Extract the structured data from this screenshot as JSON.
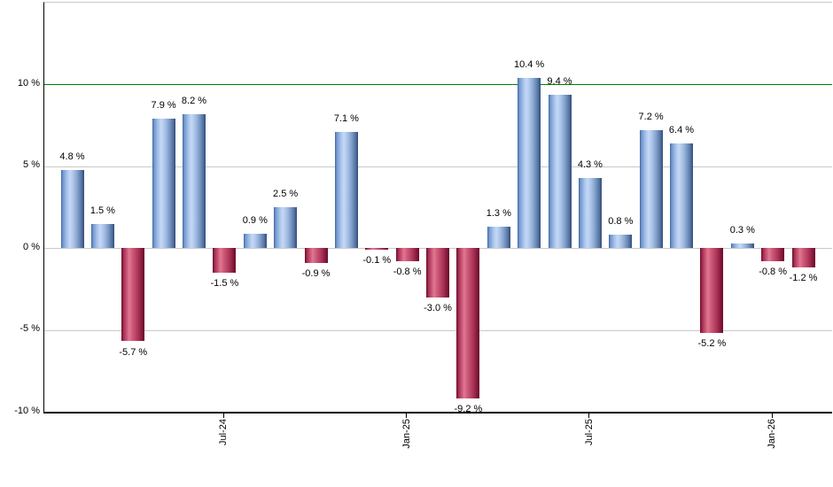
{
  "chart_data": {
    "type": "bar",
    "title": "",
    "unit": "%",
    "values": [
      4.8,
      1.5,
      -5.7,
      7.9,
      8.2,
      -1.5,
      0.9,
      2.5,
      -0.9,
      7.1,
      -0.1,
      -0.8,
      -3.0,
      -9.2,
      1.3,
      10.4,
      9.4,
      4.3,
      0.8,
      7.2,
      6.4,
      -5.2,
      0.3,
      -0.8,
      -1.2
    ],
    "bar_labels": [
      "4.8 %",
      "1.5 %",
      "-5.7 %",
      "7.9 %",
      "8.2 %",
      "-1.5 %",
      "0.9 %",
      "2.5 %",
      "-0.9 %",
      "7.1 %",
      "-0.1 %",
      "-0.8 %",
      "-3.0 %",
      "-9.2 %",
      "1.3 %",
      "10.4 %",
      "9.4 %",
      "4.3 %",
      "0.8 %",
      "7.2 %",
      "6.4 %",
      "-5.2 %",
      "0.3 %",
      "-0.8 %",
      "-1.2 %"
    ],
    "x_ticks": [
      {
        "label": "Jul-24",
        "bar_index": 5
      },
      {
        "label": "Jan-25",
        "bar_index": 11
      },
      {
        "label": "Jul-25",
        "bar_index": 17
      },
      {
        "label": "Jan-26",
        "bar_index": 23
      }
    ],
    "y_ticks": [
      {
        "label": "10 %",
        "value": 10
      },
      {
        "label": "5 %",
        "value": 5
      },
      {
        "label": "0 %",
        "value": 0
      },
      {
        "label": "-5 %",
        "value": -5
      },
      {
        "label": "-10 %",
        "value": -10
      }
    ],
    "gridline_values": [
      5,
      0,
      -5
    ],
    "reference_line": {
      "value": 10,
      "color": "#007f00"
    },
    "ylim": [
      -10,
      15
    ],
    "legend": "none",
    "colors": {
      "positive_bar": "#8fafd9",
      "negative_bar": "#c0496a",
      "grid": "#c9c9c9",
      "axis": "#000000",
      "reference": "#007f00",
      "label_text": "#000000",
      "background": "#ffffff"
    }
  }
}
